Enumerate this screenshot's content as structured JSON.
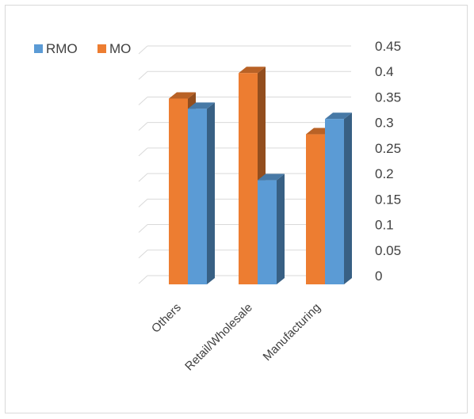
{
  "chart_data": {
    "type": "bar",
    "style": "3d-clustered-column",
    "categories": [
      "Others",
      "Retail/Wholesale",
      "Manufacturing"
    ],
    "series": [
      {
        "name": "MO",
        "values": [
          0.35,
          0.4,
          0.28
        ],
        "color": "#ED7D31"
      },
      {
        "name": "RMO",
        "values": [
          0.33,
          0.19,
          0.31
        ],
        "color": "#5B9BD5"
      }
    ],
    "ylim": [
      0,
      0.45
    ],
    "yticks": [
      "0",
      "0.05",
      "0.1",
      "0.15",
      "0.2",
      "0.25",
      "0.3",
      "0.35",
      "0.4",
      "0.45"
    ],
    "y_axis_side": "right",
    "grid": true,
    "legend": {
      "position": "top-left",
      "entries": [
        {
          "name": "RMO",
          "color": "#5B9BD5"
        },
        {
          "name": "MO",
          "color": "#ED7D31"
        }
      ]
    }
  }
}
